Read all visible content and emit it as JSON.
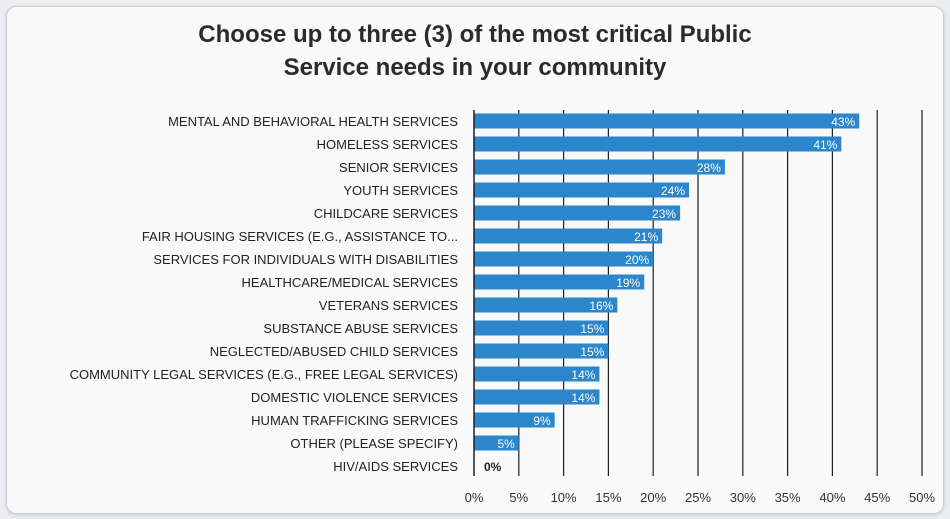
{
  "chart_data": {
    "type": "bar",
    "orientation": "horizontal",
    "title": "Choose up to three (3) of the most critical Public Service needs in your community",
    "title_lines": [
      "Choose up to three (3) of the most critical Public",
      "Service needs in your community"
    ],
    "categories": [
      "MENTAL AND BEHAVIORAL HEALTH SERVICES",
      "HOMELESS SERVICES",
      "SENIOR SERVICES",
      "YOUTH SERVICES",
      "CHILDCARE SERVICES",
      "FAIR HOUSING SERVICES (E.G., ASSISTANCE TO...",
      "SERVICES FOR INDIVIDUALS WITH DISABILITIES",
      "HEALTHCARE/MEDICAL SERVICES",
      "VETERANS SERVICES",
      "SUBSTANCE ABUSE SERVICES",
      "NEGLECTED/ABUSED CHILD SERVICES",
      "COMMUNITY LEGAL SERVICES (E.G., FREE LEGAL SERVICES)",
      "DOMESTIC VIOLENCE SERVICES",
      "HUMAN TRAFFICKING SERVICES",
      "OTHER (PLEASE SPECIFY)",
      "HIV/AIDS SERVICES"
    ],
    "values": [
      43,
      41,
      28,
      24,
      23,
      21,
      20,
      19,
      16,
      15,
      15,
      14,
      14,
      9,
      5,
      0
    ],
    "data_labels": [
      "43%",
      "41%",
      "28%",
      "24%",
      "23%",
      "21%",
      "20%",
      "19%",
      "16%",
      "15%",
      "15%",
      "14%",
      "14%",
      "9%",
      "5%",
      "0%"
    ],
    "xlim": [
      0,
      50
    ],
    "x_ticks": [
      "0%",
      "5%",
      "10%",
      "15%",
      "20%",
      "25%",
      "30%",
      "35%",
      "40%",
      "45%",
      "50%"
    ],
    "grid": true,
    "legend": "none",
    "bar_color": "#2b86cc"
  }
}
